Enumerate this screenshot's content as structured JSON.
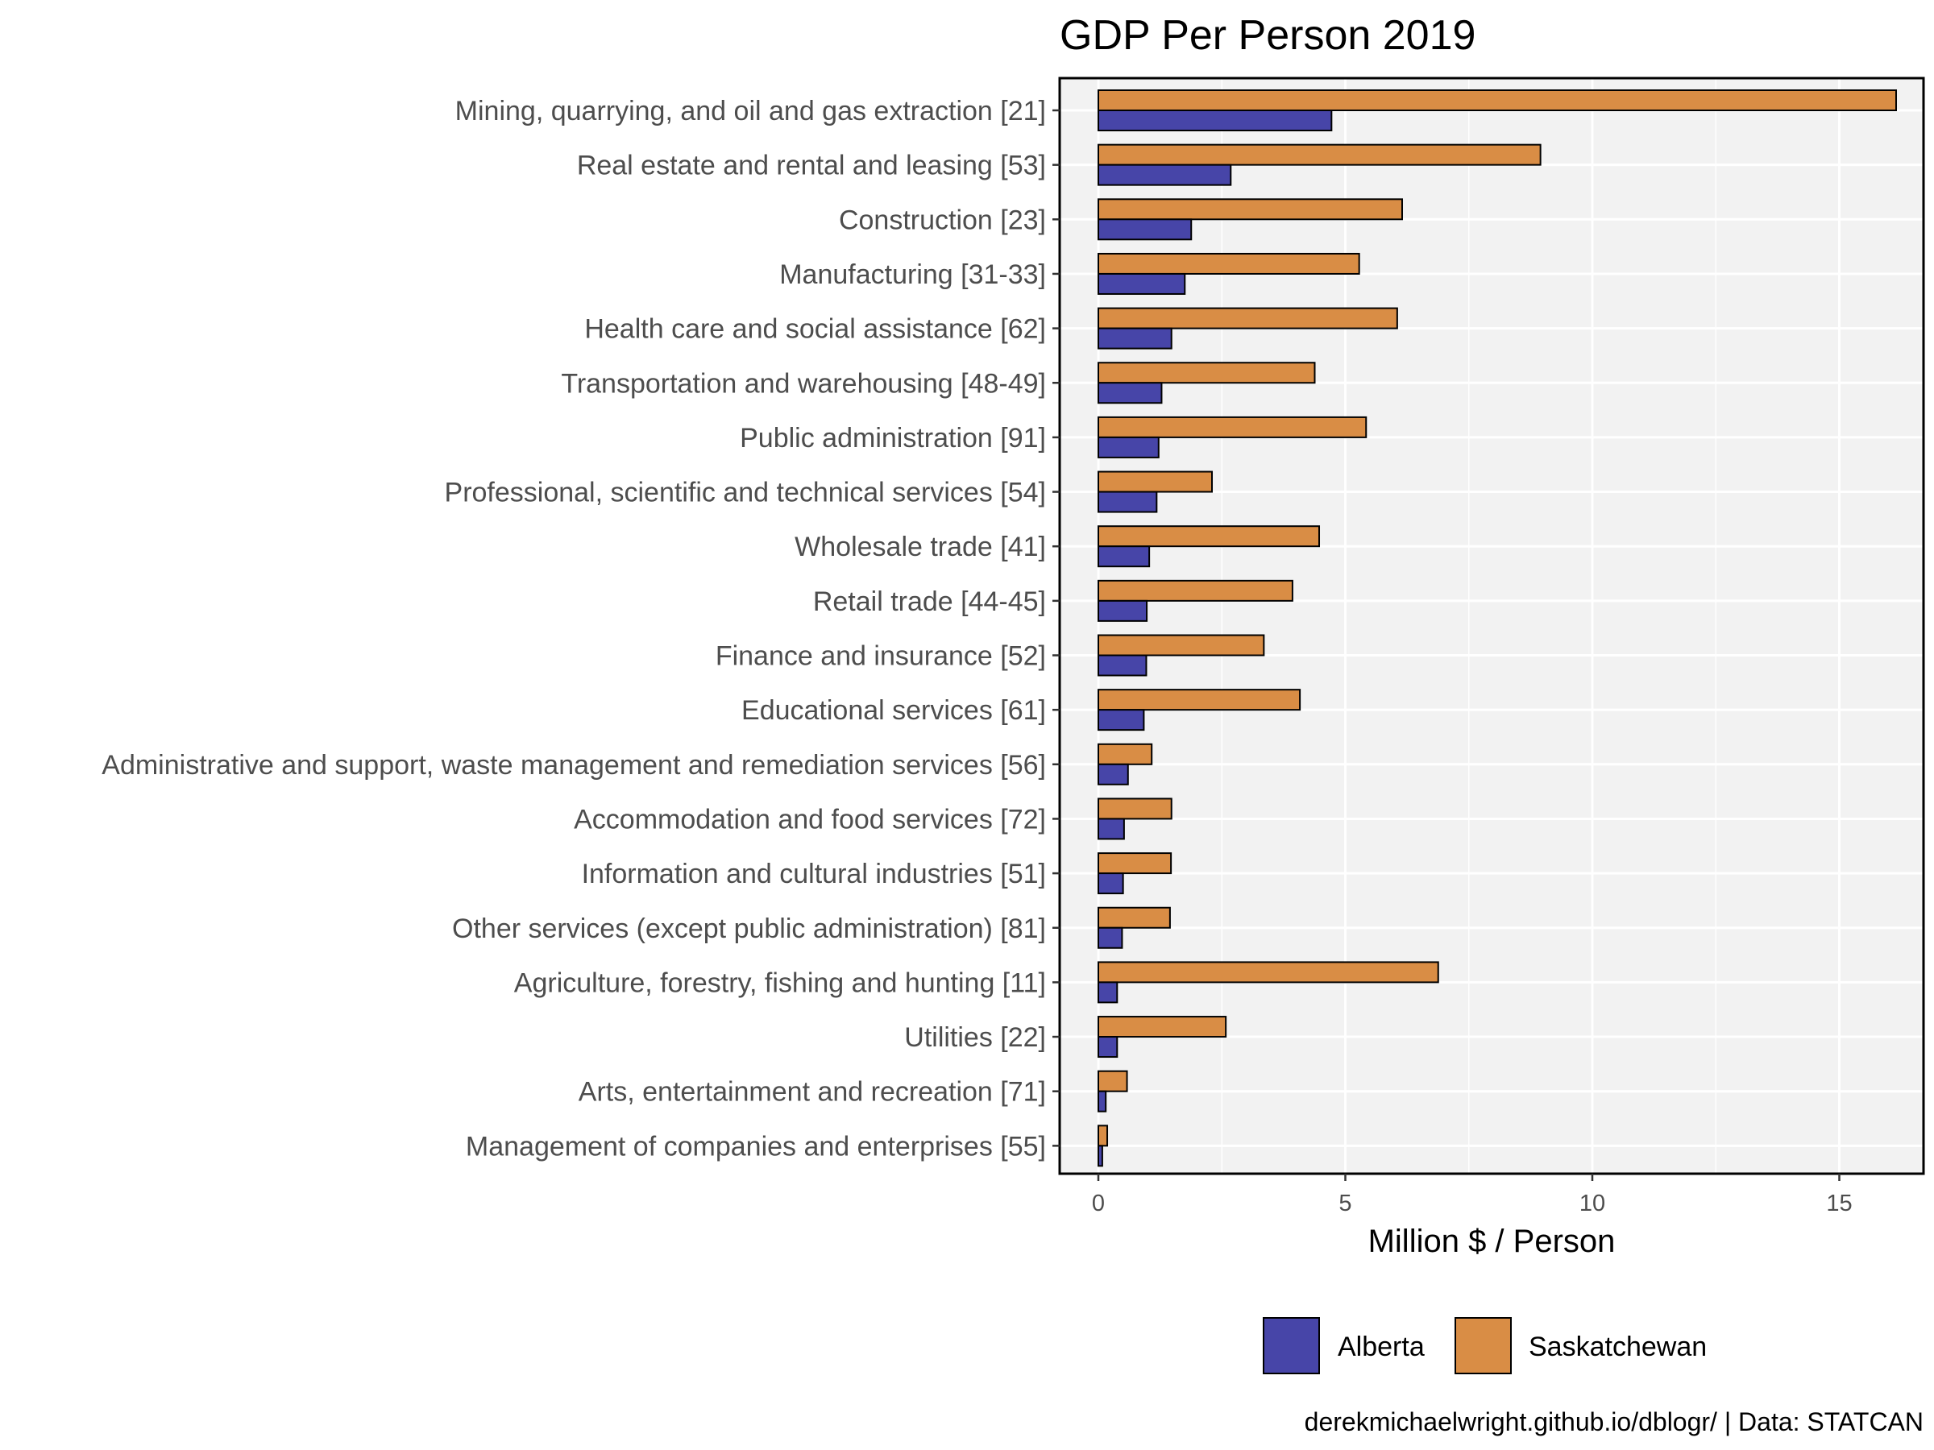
{
  "chart_data": {
    "type": "bar",
    "orientation": "horizontal",
    "title": "GDP Per Person 2019",
    "xlabel": "Million $ / Person",
    "ylabel": "",
    "xlim": [
      0,
      16.8
    ],
    "xticks": [
      0,
      5,
      10,
      15
    ],
    "grid": true,
    "legend_position": "bottom",
    "caption": "derekmichaelwright.github.io/dblogr/ | Data: STATCAN",
    "categories": [
      "Mining, quarrying, and oil and gas extraction [21]",
      "Real estate and rental and leasing [53]",
      "Construction [23]",
      "Manufacturing [31-33]",
      "Health care and social assistance [62]",
      "Transportation and warehousing [48-49]",
      "Public administration [91]",
      "Professional, scientific and technical services [54]",
      "Wholesale trade [41]",
      "Retail trade [44-45]",
      "Finance and insurance [52]",
      "Educational services [61]",
      "Administrative and support, waste management and remediation services [56]",
      "Accommodation and food services [72]",
      "Information and cultural industries [51]",
      "Other services (except public administration) [81]",
      "Agriculture, forestry, fishing and hunting [11]",
      "Utilities [22]",
      "Arts, entertainment and recreation [71]",
      "Management of companies and enterprises [55]"
    ],
    "series": [
      {
        "name": "Saskatchewan",
        "color": "#d98d45",
        "values": [
          16.15,
          8.95,
          6.15,
          5.28,
          6.05,
          4.38,
          5.42,
          2.3,
          4.47,
          3.93,
          3.35,
          4.08,
          1.08,
          1.48,
          1.47,
          1.45,
          6.88,
          2.58,
          0.58,
          0.18
        ]
      },
      {
        "name": "Alberta",
        "color": "#4745a8",
        "values": [
          4.72,
          2.68,
          1.88,
          1.75,
          1.48,
          1.28,
          1.22,
          1.18,
          1.03,
          0.98,
          0.97,
          0.92,
          0.6,
          0.52,
          0.5,
          0.48,
          0.38,
          0.38,
          0.15,
          0.08
        ]
      }
    ],
    "legend": [
      {
        "name": "Alberta",
        "color": "#4745a8"
      },
      {
        "name": "Saskatchewan",
        "color": "#d98d45"
      }
    ],
    "panel_background": "#f2f2f2",
    "grid_color": "#ffffff"
  }
}
